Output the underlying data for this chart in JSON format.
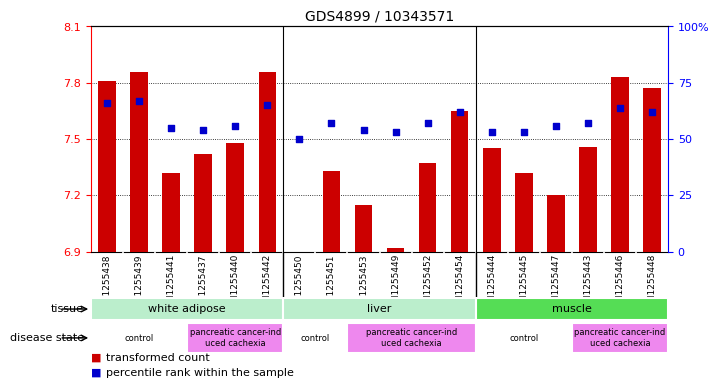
{
  "title": "GDS4899 / 10343571",
  "samples": [
    "GSM1255438",
    "GSM1255439",
    "GSM1255441",
    "GSM1255437",
    "GSM1255440",
    "GSM1255442",
    "GSM1255450",
    "GSM1255451",
    "GSM1255453",
    "GSM1255449",
    "GSM1255452",
    "GSM1255454",
    "GSM1255444",
    "GSM1255445",
    "GSM1255447",
    "GSM1255443",
    "GSM1255446",
    "GSM1255448"
  ],
  "transformed_count": [
    7.81,
    7.86,
    7.32,
    7.42,
    7.48,
    7.86,
    6.9,
    7.33,
    7.15,
    6.92,
    7.37,
    7.65,
    7.45,
    7.32,
    7.2,
    7.46,
    7.83,
    7.77
  ],
  "percentile_rank": [
    66,
    67,
    55,
    54,
    56,
    65,
    50,
    57,
    54,
    53,
    57,
    62,
    53,
    53,
    56,
    57,
    64,
    62
  ],
  "ylim_left": [
    6.9,
    8.1
  ],
  "ylim_right": [
    0,
    100
  ],
  "yticks_left": [
    6.9,
    7.2,
    7.5,
    7.8,
    8.1
  ],
  "yticks_right": [
    0,
    25,
    50,
    75,
    100
  ],
  "bar_color": "#cc0000",
  "dot_color": "#0000cc",
  "bar_base": 6.9,
  "tissue_groups": [
    {
      "label": "white adipose",
      "start": 0,
      "end": 6
    },
    {
      "label": "liver",
      "start": 6,
      "end": 12
    },
    {
      "label": "muscle",
      "start": 12,
      "end": 18
    }
  ],
  "tissue_colors": [
    "#bbeecc",
    "#bbeecc",
    "#55dd55"
  ],
  "disease_groups": [
    {
      "label": "control",
      "start": 0,
      "end": 3
    },
    {
      "label": "pancreatic cancer-ind\nuced cachexia",
      "start": 3,
      "end": 6
    },
    {
      "label": "control",
      "start": 6,
      "end": 8
    },
    {
      "label": "pancreatic cancer-ind\nuced cachexia",
      "start": 8,
      "end": 12
    },
    {
      "label": "control",
      "start": 12,
      "end": 15
    },
    {
      "label": "pancreatic cancer-ind\nuced cachexia",
      "start": 15,
      "end": 18
    }
  ],
  "disease_colors": [
    "#ffffff",
    "#ee88ee",
    "#ffffff",
    "#ee88ee",
    "#ffffff",
    "#ee88ee"
  ],
  "legend_bar_label": "transformed count",
  "legend_dot_label": "percentile rank within the sample",
  "tissue_label": "tissue",
  "disease_label": "disease state",
  "xtick_bg": "#cccccc",
  "plot_bg": "#ffffff"
}
